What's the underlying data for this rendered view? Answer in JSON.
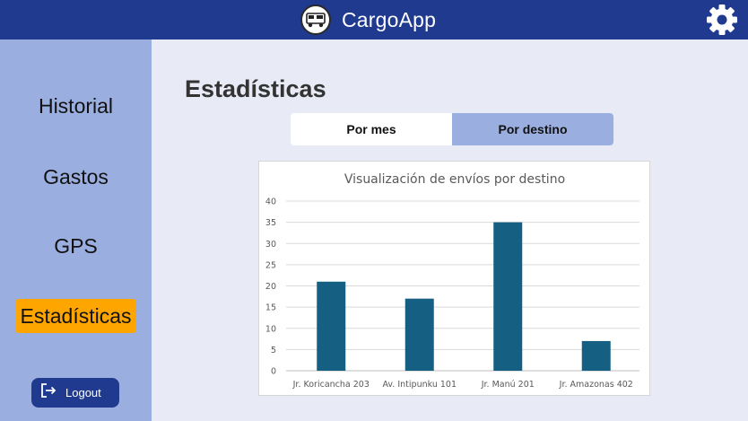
{
  "header": {
    "app_title": "CargoApp",
    "logo_icon": "truck-icon",
    "settings_icon": "gear-icon",
    "bar_color": "#1f3a8f"
  },
  "sidebar": {
    "items": [
      {
        "label": "Historial",
        "active": false
      },
      {
        "label": "Gastos",
        "active": false
      },
      {
        "label": "GPS",
        "active": false
      },
      {
        "label": "Estadísticas",
        "active": true
      }
    ],
    "active_color": "#ffa500",
    "background": "#9aaee0",
    "logout_label": "Logout",
    "logout_icon": "logout-icon"
  },
  "main": {
    "title": "Estadísticas",
    "tabs": [
      {
        "label": "Por mes",
        "selected": false
      },
      {
        "label": "Por destino",
        "selected": true
      }
    ]
  },
  "chart_data": {
    "type": "bar",
    "title": "Visualización de envíos por destino",
    "categories": [
      "Jr. Koricancha 203",
      "Av. Intipunku 101",
      "Jr. Manú 201",
      "Jr. Amazonas 402"
    ],
    "values": [
      21,
      17,
      35,
      7
    ],
    "yticks": [
      "0",
      "5",
      "10",
      "15",
      "20",
      "25",
      "30",
      "35",
      "40"
    ],
    "ylim": [
      0,
      40
    ],
    "grid": true,
    "legend": "none",
    "bar_color": "#156082"
  }
}
